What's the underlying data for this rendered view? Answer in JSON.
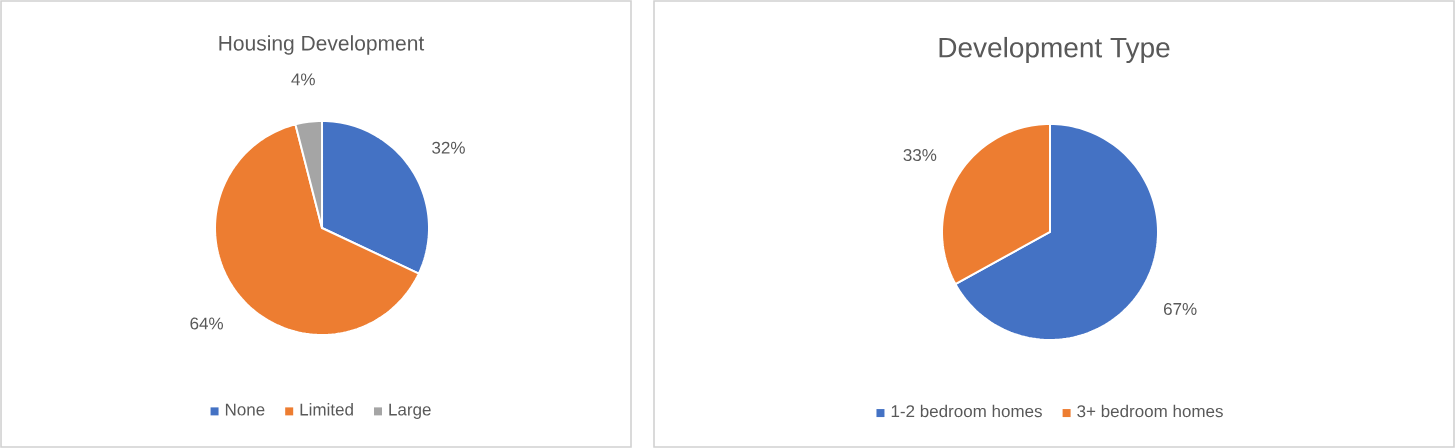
{
  "chart_data": [
    {
      "type": "pie",
      "title": "Housing Development",
      "categories": [
        "None",
        "Limited",
        "Large"
      ],
      "values": [
        32,
        64,
        4
      ],
      "colors": [
        "#4472c4",
        "#ed7d31",
        "#a5a5a5"
      ],
      "value_labels": [
        "32%",
        "64%",
        "4%"
      ],
      "legend": "bottom"
    },
    {
      "type": "pie",
      "title": "Development Type",
      "categories": [
        "1-2 bedroom homes",
        "3+ bedroom homes"
      ],
      "values": [
        67,
        33
      ],
      "colors": [
        "#4472c4",
        "#ed7d31"
      ],
      "value_labels": [
        "67%",
        "33%"
      ],
      "legend": "bottom"
    }
  ]
}
